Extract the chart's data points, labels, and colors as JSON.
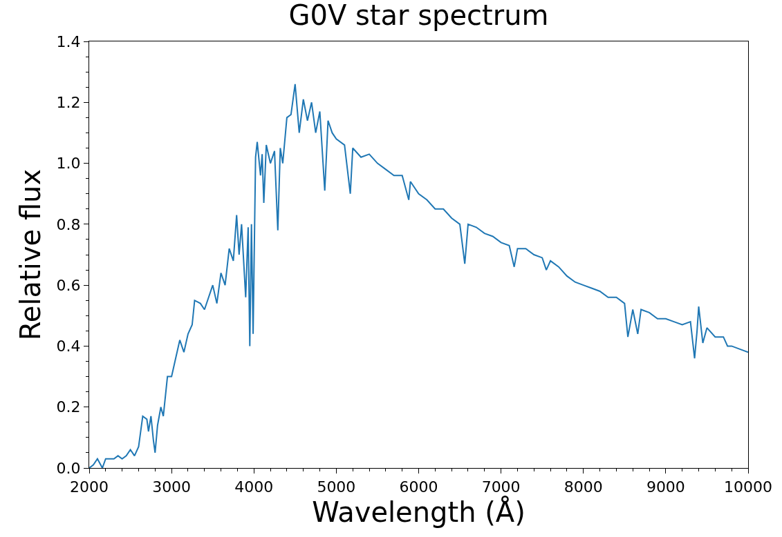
{
  "chart_data": {
    "type": "line",
    "title": "G0V star spectrum",
    "xlabel": "Wavelength (Å)",
    "ylabel": "Relative flux",
    "xlim": [
      2000,
      10000
    ],
    "ylim": [
      0,
      1.4
    ],
    "marker": "none",
    "line_style": "solid",
    "xticks": [
      2000,
      {
        "value": 2200,
        "label": null
      },
      {
        "value": 2400,
        "label": null
      },
      {
        "value": 2600,
        "label": null
      },
      {
        "value": 2800,
        "label": null
      },
      3000,
      {
        "value": 3200,
        "label": null
      },
      {
        "value": 3400,
        "label": null
      },
      {
        "value": 3600,
        "label": null
      },
      {
        "value": 3800,
        "label": null
      },
      4000,
      {
        "value": 4200,
        "label": null
      },
      {
        "value": 4400,
        "label": null
      },
      {
        "value": 4600,
        "label": null
      },
      {
        "value": 4800,
        "label": null
      },
      5000,
      {
        "value": 5200,
        "label": null
      },
      {
        "value": 5400,
        "label": null
      },
      {
        "value": 5600,
        "label": null
      },
      {
        "value": 5800,
        "label": null
      },
      6000,
      {
        "value": 6200,
        "label": null
      },
      {
        "value": 6400,
        "label": null
      },
      {
        "value": 6600,
        "label": null
      },
      {
        "value": 6800,
        "label": null
      },
      7000,
      {
        "value": 7200,
        "label": null
      },
      {
        "value": 7400,
        "label": null
      },
      {
        "value": 7600,
        "label": null
      },
      {
        "value": 7800,
        "label": null
      },
      8000,
      {
        "value": 8200,
        "label": null
      },
      {
        "value": 8400,
        "label": null
      },
      {
        "value": 8600,
        "label": null
      },
      {
        "value": 8800,
        "label": null
      },
      9000,
      {
        "value": 9200,
        "label": null
      },
      {
        "value": 9400,
        "label": null
      },
      {
        "value": 9600,
        "label": null
      },
      {
        "value": 9800,
        "label": null
      },
      10000
    ],
    "yticks": [
      {
        "value": 0,
        "label": "0.0"
      },
      {
        "value": 0.05,
        "label": null
      },
      {
        "value": 0.1,
        "label": null
      },
      {
        "value": 0.15,
        "label": null
      },
      0.2,
      {
        "value": 0.25,
        "label": null
      },
      {
        "value": 0.3,
        "label": null
      },
      {
        "value": 0.35,
        "label": null
      },
      0.4,
      {
        "value": 0.45,
        "label": null
      },
      {
        "value": 0.5,
        "label": null
      },
      {
        "value": 0.55,
        "label": null
      },
      0.6,
      {
        "value": 0.65,
        "label": null
      },
      {
        "value": 0.7,
        "label": null
      },
      {
        "value": 0.75,
        "label": null
      },
      0.8,
      {
        "value": 0.85,
        "label": null
      },
      {
        "value": 0.9,
        "label": null
      },
      {
        "value": 0.95,
        "label": null
      },
      {
        "value": 1.0,
        "label": "1.0"
      },
      {
        "value": 1.05,
        "label": null
      },
      {
        "value": 1.1,
        "label": null
      },
      {
        "value": 1.15,
        "label": null
      },
      1.2,
      {
        "value": 1.25,
        "label": null
      },
      {
        "value": 1.3,
        "label": null
      },
      {
        "value": 1.35,
        "label": null
      },
      1.4
    ],
    "series": [
      {
        "color": "#1f77b4",
        "x": [
          2000,
          2050,
          2100,
          2160,
          2200,
          2300,
          2350,
          2400,
          2450,
          2500,
          2550,
          2600,
          2650,
          2700,
          2720,
          2750,
          2780,
          2800,
          2830,
          2870,
          2900,
          2950,
          3000,
          3050,
          3100,
          3150,
          3200,
          3250,
          3280,
          3350,
          3400,
          3450,
          3500,
          3550,
          3600,
          3650,
          3700,
          3750,
          3790,
          3820,
          3850,
          3900,
          3930,
          3950,
          3970,
          3990,
          4020,
          4040,
          4080,
          4100,
          4120,
          4150,
          4200,
          4250,
          4290,
          4320,
          4350,
          4400,
          4450,
          4500,
          4550,
          4600,
          4650,
          4700,
          4750,
          4800,
          4860,
          4900,
          4950,
          5000,
          5100,
          5170,
          5200,
          5300,
          5400,
          5500,
          5600,
          5700,
          5800,
          5880,
          5900,
          6000,
          6100,
          6200,
          6300,
          6400,
          6500,
          6560,
          6600,
          6700,
          6800,
          6900,
          7000,
          7100,
          7160,
          7200,
          7300,
          7400,
          7500,
          7550,
          7600,
          7700,
          7800,
          7900,
          8000,
          8100,
          8200,
          8300,
          8400,
          8500,
          8540,
          8600,
          8660,
          8700,
          8800,
          8900,
          9000,
          9100,
          9200,
          9300,
          9350,
          9380,
          9400,
          9450,
          9500,
          9600,
          9700,
          9750,
          9800,
          9900,
          10000
        ],
        "values": [
          0.0,
          0.01,
          0.03,
          0.0,
          0.03,
          0.03,
          0.04,
          0.03,
          0.04,
          0.06,
          0.04,
          0.07,
          0.17,
          0.16,
          0.12,
          0.17,
          0.09,
          0.05,
          0.14,
          0.2,
          0.17,
          0.3,
          0.3,
          0.36,
          0.42,
          0.38,
          0.44,
          0.47,
          0.55,
          0.54,
          0.52,
          0.56,
          0.6,
          0.54,
          0.64,
          0.6,
          0.72,
          0.68,
          0.83,
          0.7,
          0.8,
          0.56,
          0.79,
          0.4,
          0.8,
          0.44,
          1.02,
          1.07,
          0.96,
          1.03,
          0.87,
          1.06,
          1.0,
          1.04,
          0.78,
          1.05,
          1.0,
          1.15,
          1.16,
          1.26,
          1.1,
          1.21,
          1.14,
          1.2,
          1.1,
          1.17,
          0.91,
          1.14,
          1.1,
          1.08,
          1.06,
          0.9,
          1.05,
          1.02,
          1.03,
          1.0,
          0.98,
          0.96,
          0.96,
          0.88,
          0.94,
          0.9,
          0.88,
          0.85,
          0.85,
          0.82,
          0.8,
          0.67,
          0.8,
          0.79,
          0.77,
          0.76,
          0.74,
          0.73,
          0.66,
          0.72,
          0.72,
          0.7,
          0.69,
          0.65,
          0.68,
          0.66,
          0.63,
          0.61,
          0.6,
          0.59,
          0.58,
          0.56,
          0.56,
          0.54,
          0.43,
          0.52,
          0.44,
          0.52,
          0.51,
          0.49,
          0.49,
          0.48,
          0.47,
          0.48,
          0.36,
          0.45,
          0.53,
          0.41,
          0.46,
          0.43,
          0.43,
          0.4,
          0.4,
          0.39,
          0.38
        ]
      }
    ]
  }
}
